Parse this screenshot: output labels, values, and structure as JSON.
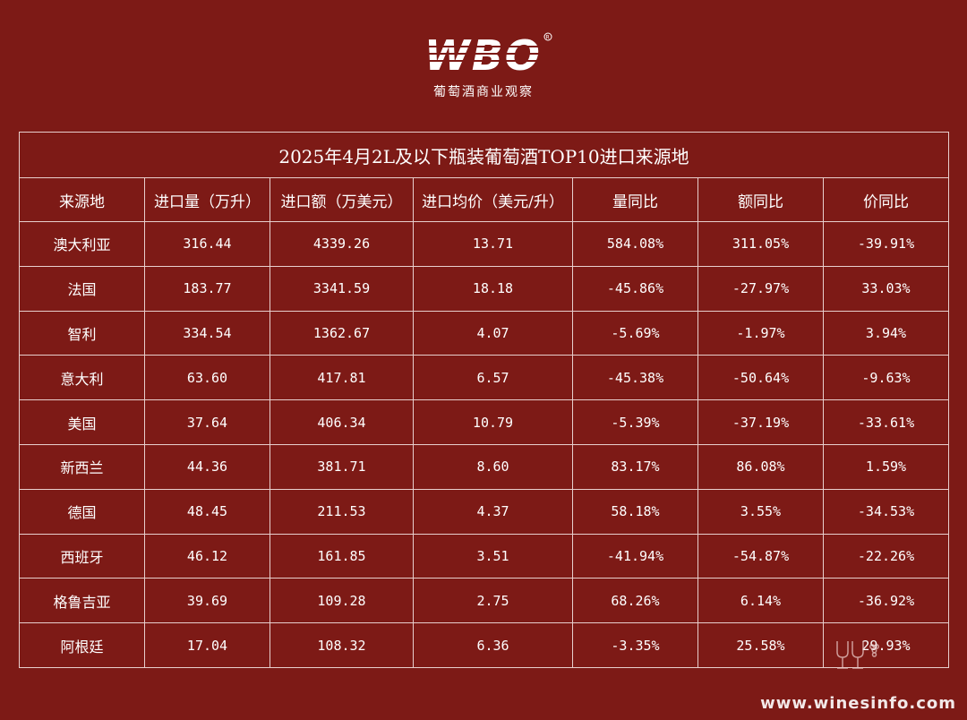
{
  "header": {
    "logo_text": "WBO",
    "logo_subtitle": "葡萄酒商业观察"
  },
  "table": {
    "title": "2025年4月2L及以下瓶装葡萄酒TOP10进口来源地",
    "columns": [
      "来源地",
      "进口量（万升）",
      "进口额（万美元）",
      "进口均价（美元/升）",
      "量同比",
      "额同比",
      "价同比"
    ],
    "rows": [
      [
        "澳大利亚",
        "316.44",
        "4339.26",
        "13.71",
        "584.08%",
        "311.05%",
        "-39.91%"
      ],
      [
        "法国",
        "183.77",
        "3341.59",
        "18.18",
        "-45.86%",
        "-27.97%",
        "33.03%"
      ],
      [
        "智利",
        "334.54",
        "1362.67",
        "4.07",
        "-5.69%",
        "-1.97%",
        "3.94%"
      ],
      [
        "意大利",
        "63.60",
        "417.81",
        "6.57",
        "-45.38%",
        "-50.64%",
        "-9.63%"
      ],
      [
        "美国",
        "37.64",
        "406.34",
        "10.79",
        "-5.39%",
        "-37.19%",
        "-33.61%"
      ],
      [
        "新西兰",
        "44.36",
        "381.71",
        "8.60",
        "83.17%",
        "86.08%",
        "1.59%"
      ],
      [
        "德国",
        "48.45",
        "211.53",
        "4.37",
        "58.18%",
        "3.55%",
        "-34.53%"
      ],
      [
        "西班牙",
        "46.12",
        "161.85",
        "3.51",
        "-41.94%",
        "-54.87%",
        "-22.26%"
      ],
      [
        "格鲁吉亚",
        "39.69",
        "109.28",
        "2.75",
        "68.26%",
        "6.14%",
        "-36.92%"
      ],
      [
        "阿根廷",
        "17.04",
        "108.32",
        "6.36",
        "-3.35%",
        "25.58%",
        "29.93%"
      ]
    ]
  },
  "watermark": {
    "text": "www.winesinfo.com",
    "icon": "wine-glass-icon"
  },
  "colors": {
    "background": "#7d1a16",
    "border": "#e8cfcd",
    "text": "#ffffff"
  }
}
